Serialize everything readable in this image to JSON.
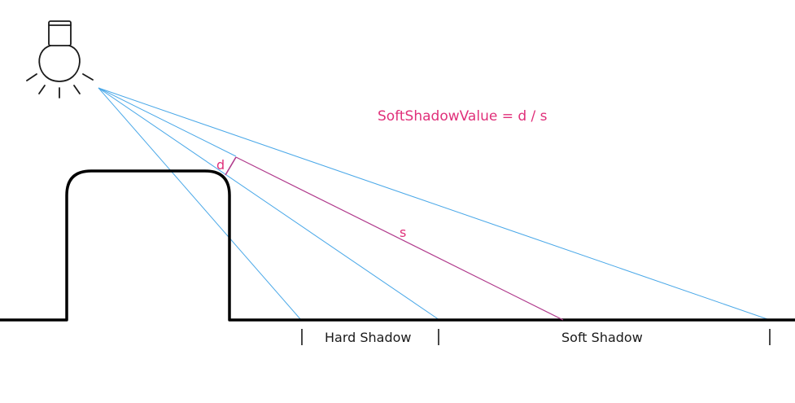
{
  "formula": {
    "text": "SoftShadowValue = d / s"
  },
  "labels": {
    "d": "d",
    "s": "s"
  },
  "regions": {
    "hard_shadow": "Hard Shadow",
    "soft_shadow": "Soft Shadow"
  },
  "colors": {
    "ray": "#4aa8e8",
    "measure": "#b03a8c",
    "accent_text": "#e0307a",
    "outline": "#000000",
    "bulb": "#1a1a1a"
  },
  "icons": {
    "light": "light-bulb-icon"
  }
}
